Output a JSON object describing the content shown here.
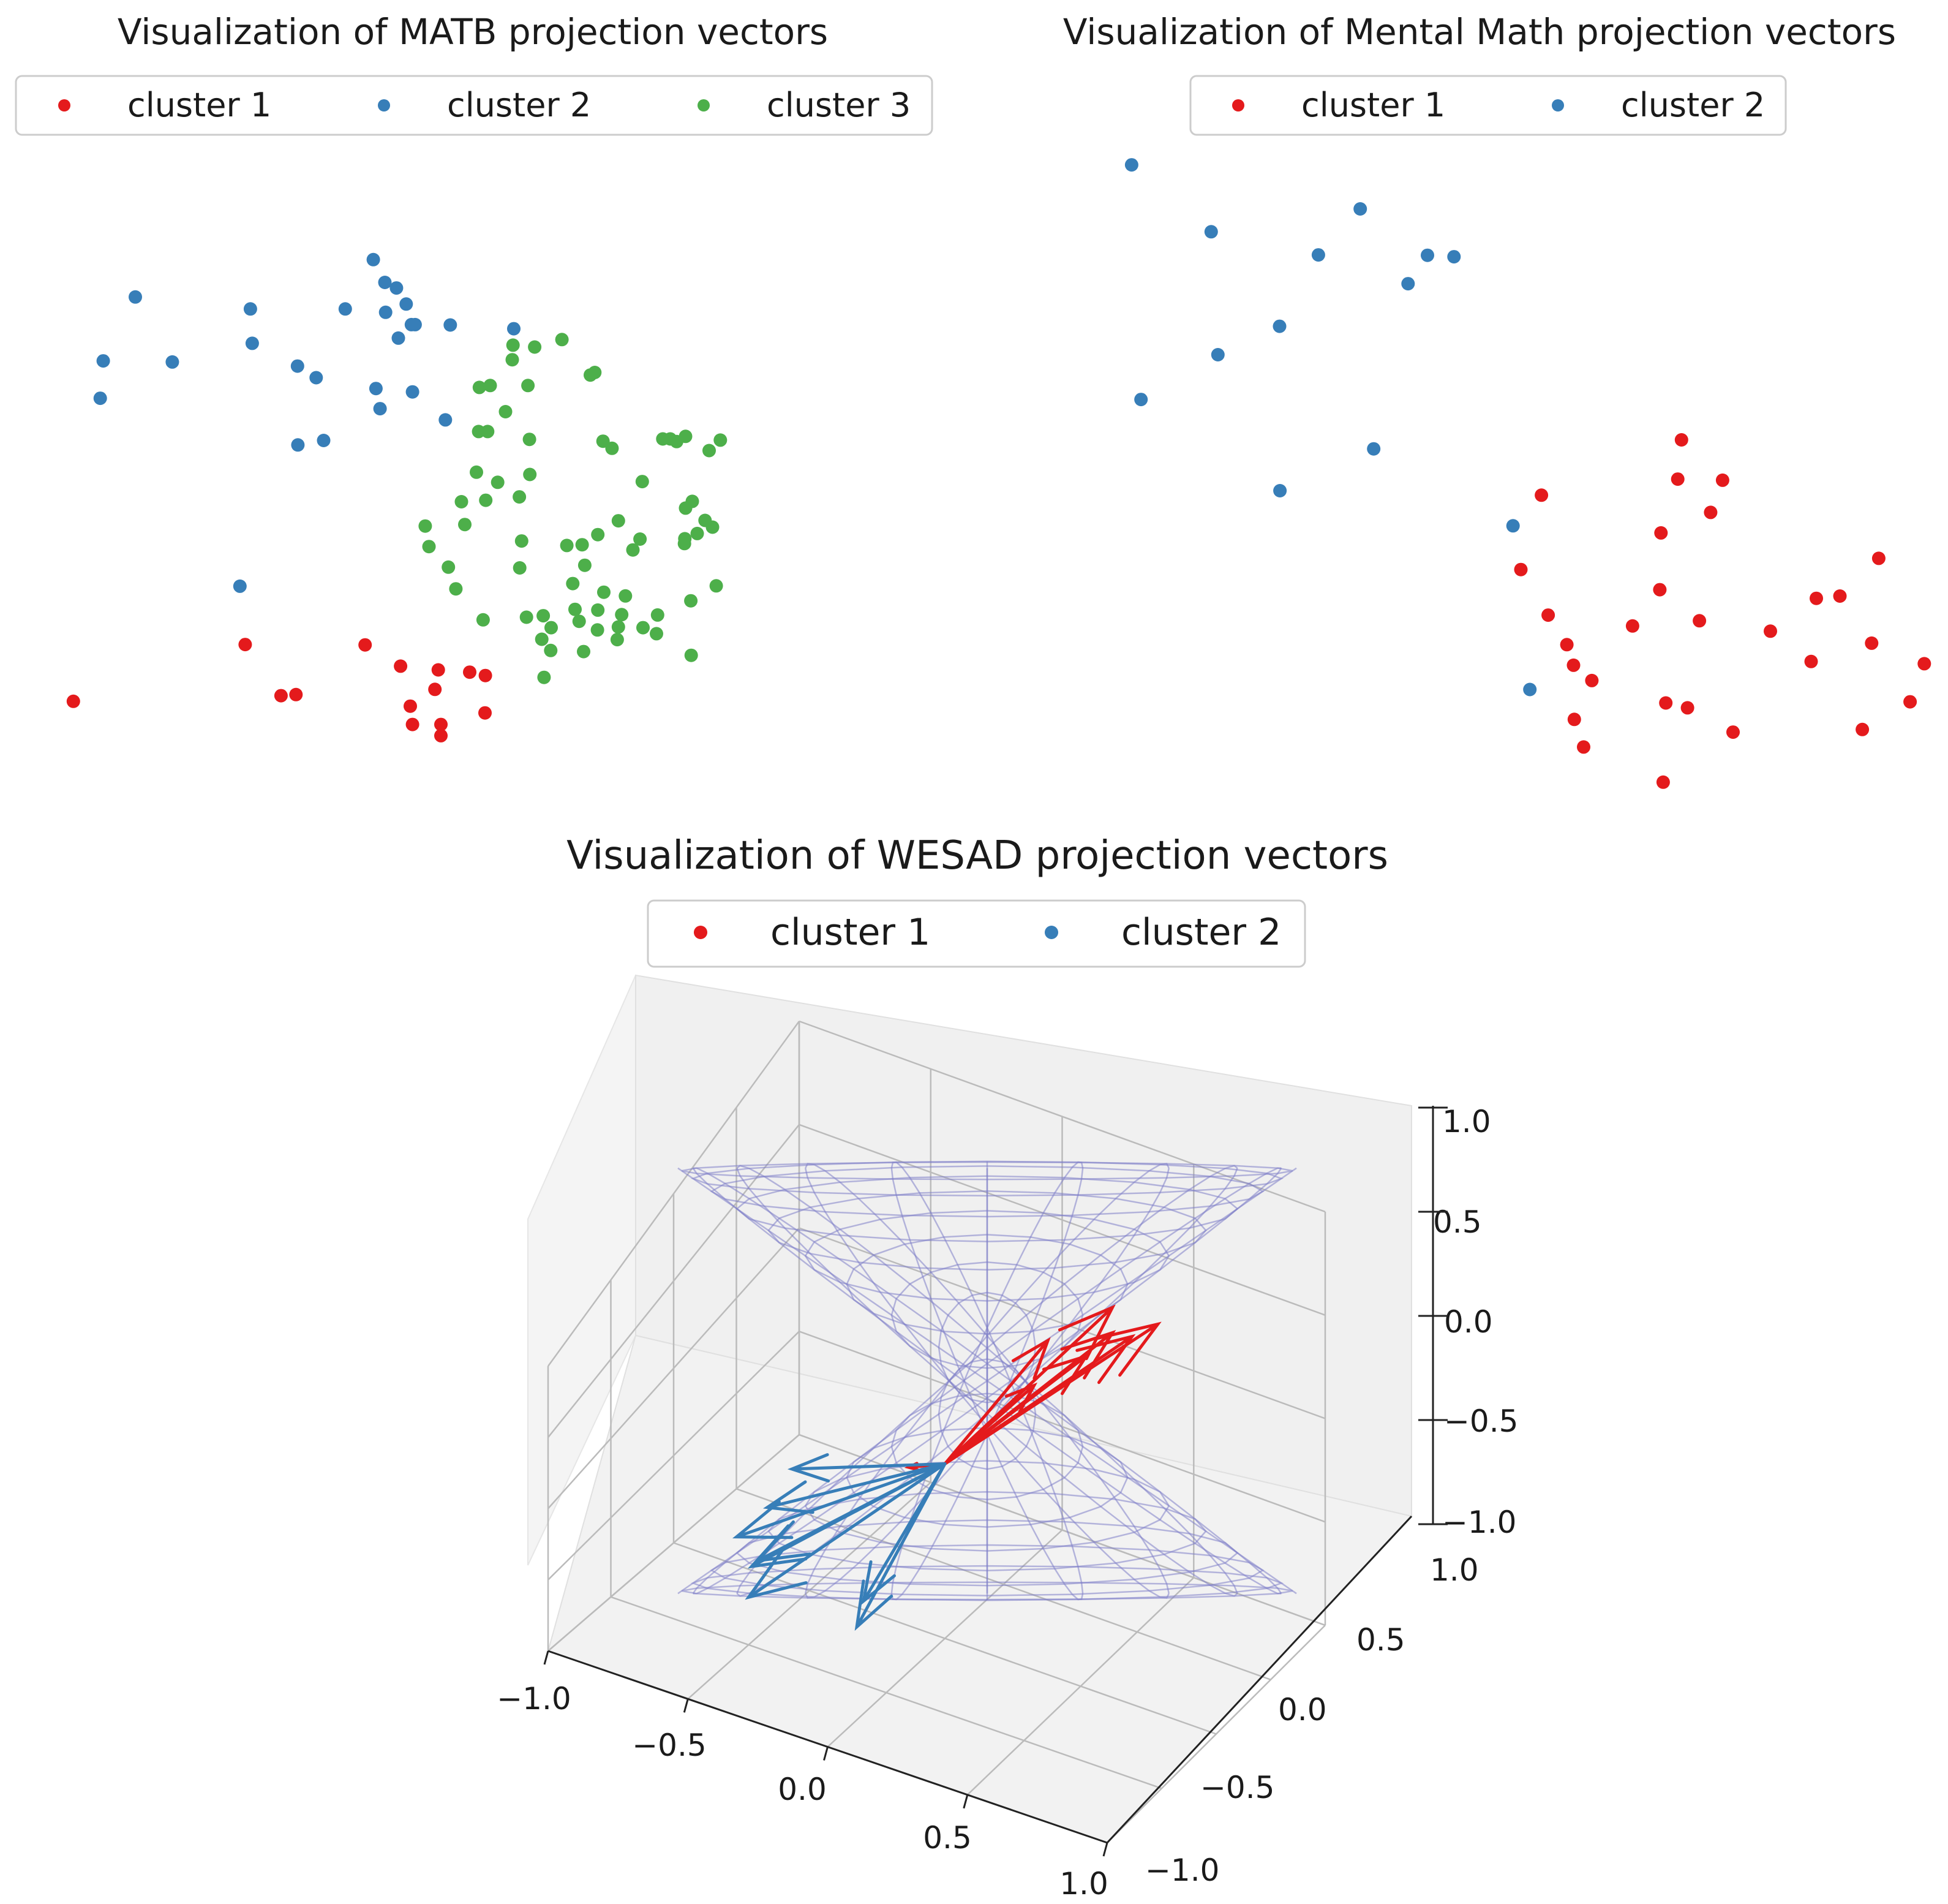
{
  "colors": {
    "cluster1": "#e41a1c",
    "cluster2": "#377eb8",
    "cluster3": "#4daf4a",
    "sphere": "#8080c8",
    "pane": "#f2f2f2",
    "grid": "#bbbbbb"
  },
  "chart_data": [
    {
      "type": "scatter",
      "title": "Visualization of MATB projection vectors",
      "legend_position": "top-center",
      "axes_visible": false,
      "series": [
        {
          "name": "cluster 1",
          "color": "#e41a1c",
          "points": [
            [
              -10.84,
              -10.57
            ],
            [
              -6.24,
              -9.05
            ],
            [
              -5.28,
              -10.42
            ],
            [
              -4.88,
              -10.39
            ],
            [
              -3.03,
              -9.06
            ],
            [
              -2.08,
              -9.63
            ],
            [
              -1.82,
              -10.7
            ],
            [
              -1.76,
              -11.19
            ],
            [
              -1.16,
              -10.25
            ],
            [
              -1.07,
              -9.73
            ],
            [
              -1.0,
              -11.19
            ],
            [
              -1.0,
              -11.49
            ],
            [
              -0.23,
              -9.79
            ],
            [
              0.18,
              -10.88
            ],
            [
              0.19,
              -9.88
            ]
          ]
        },
        {
          "name": "cluster 2",
          "color": "#377eb8",
          "points": [
            [
              -10.04,
              -1.46
            ],
            [
              -10.12,
              -2.46
            ],
            [
              -9.18,
              0.25
            ],
            [
              -8.19,
              -1.49
            ],
            [
              -6.38,
              -7.49
            ],
            [
              -6.1,
              -0.07
            ],
            [
              -6.05,
              -0.99
            ],
            [
              -4.84,
              -1.6
            ],
            [
              -4.83,
              -3.71
            ],
            [
              -4.34,
              -1.91
            ],
            [
              -4.14,
              -3.59
            ],
            [
              -3.56,
              -0.07
            ],
            [
              -2.74,
              -2.2
            ],
            [
              -2.63,
              -2.74
            ],
            [
              -2.81,
              1.25
            ],
            [
              -2.5,
              0.64
            ],
            [
              -2.48,
              -0.16
            ],
            [
              -2.19,
              0.49
            ],
            [
              -2.14,
              -0.85
            ],
            [
              -1.93,
              0.06
            ],
            [
              -1.79,
              -0.49
            ],
            [
              -1.76,
              -2.29
            ],
            [
              -1.69,
              -0.49
            ],
            [
              -0.88,
              -3.04
            ],
            [
              -0.75,
              -0.5
            ],
            [
              0.95,
              -0.6
            ]
          ]
        },
        {
          "name": "cluster 3",
          "color": "#4daf4a",
          "points": [
            [
              -1.42,
              -5.88
            ],
            [
              -1.32,
              -6.43
            ],
            [
              -0.8,
              -6.98
            ],
            [
              -0.6,
              -7.56
            ],
            [
              -0.45,
              -5.23
            ],
            [
              -0.36,
              -5.84
            ],
            [
              -0.05,
              -4.44
            ],
            [
              0.03,
              -2.17
            ],
            [
              0.01,
              -3.35
            ],
            [
              0.13,
              -8.39
            ],
            [
              0.2,
              -5.19
            ],
            [
              0.25,
              -3.35
            ],
            [
              0.32,
              -2.12
            ],
            [
              0.52,
              -4.71
            ],
            [
              0.73,
              -2.82
            ],
            [
              0.91,
              -1.43
            ],
            [
              0.93,
              -1.04
            ],
            [
              1.1,
              -5.1
            ],
            [
              1.11,
              -7.0
            ],
            [
              1.16,
              -6.28
            ],
            [
              1.33,
              -2.12
            ],
            [
              1.37,
              -3.56
            ],
            [
              1.29,
              -8.32
            ],
            [
              1.38,
              -4.5
            ],
            [
              1.51,
              -1.09
            ],
            [
              1.7,
              -8.91
            ],
            [
              1.74,
              -8.28
            ],
            [
              1.76,
              -9.93
            ],
            [
              1.95,
              -8.6
            ],
            [
              1.94,
              -9.21
            ],
            [
              2.24,
              -0.89
            ],
            [
              2.37,
              -6.4
            ],
            [
              2.53,
              -7.42
            ],
            [
              2.59,
              -8.11
            ],
            [
              2.7,
              -8.43
            ],
            [
              2.78,
              -6.38
            ],
            [
              2.82,
              -9.24
            ],
            [
              2.85,
              -6.93
            ],
            [
              3.0,
              -1.84
            ],
            [
              3.12,
              -1.77
            ],
            [
              3.2,
              -8.13
            ],
            [
              3.19,
              -8.66
            ],
            [
              3.2,
              -6.11
            ],
            [
              3.34,
              -3.61
            ],
            [
              3.36,
              -7.65
            ],
            [
              3.58,
              -3.8
            ],
            [
              3.72,
              -8.92
            ],
            [
              3.75,
              -8.58
            ],
            [
              3.75,
              -5.74
            ],
            [
              3.84,
              -8.25
            ],
            [
              3.94,
              -7.75
            ],
            [
              4.14,
              -6.52
            ],
            [
              4.33,
              -6.23
            ],
            [
              4.39,
              -4.69
            ],
            [
              4.41,
              -8.6
            ],
            [
              4.77,
              -8.76
            ],
            [
              4.8,
              -8.26
            ],
            [
              4.94,
              -3.55
            ],
            [
              5.14,
              -3.55
            ],
            [
              5.31,
              -3.62
            ],
            [
              5.52,
              -6.35
            ],
            [
              5.55,
              -5.4
            ],
            [
              5.55,
              -3.48
            ],
            [
              5.53,
              -6.22
            ],
            [
              5.69,
              -7.88
            ],
            [
              5.7,
              -9.34
            ],
            [
              5.73,
              -5.22
            ],
            [
              5.86,
              -6.08
            ],
            [
              6.07,
              -5.73
            ],
            [
              6.18,
              -3.86
            ],
            [
              6.27,
              -5.91
            ],
            [
              6.37,
              -7.48
            ],
            [
              6.48,
              -3.58
            ]
          ]
        }
      ]
    },
    {
      "type": "scatter",
      "title": "Visualization of Mental Math projection vectors",
      "legend_position": "top-center",
      "axes_visible": false,
      "series": [
        {
          "name": "cluster 1",
          "color": "#e41a1c",
          "points": [
            [
              10.32,
              -5.7
            ],
            [
              10.87,
              -3.71
            ],
            [
              11.05,
              -6.92
            ],
            [
              11.55,
              -7.71
            ],
            [
              11.73,
              -8.26
            ],
            [
              11.75,
              -9.71
            ],
            [
              12.0,
              -10.45
            ],
            [
              12.22,
              -8.67
            ],
            [
              13.31,
              -7.21
            ],
            [
              14.04,
              -6.24
            ],
            [
              14.07,
              -4.72
            ],
            [
              14.13,
              -11.39
            ],
            [
              14.2,
              -9.27
            ],
            [
              14.78,
              -9.4
            ],
            [
              14.62,
              -2.23
            ],
            [
              14.52,
              -3.28
            ],
            [
              15.1,
              -7.07
            ],
            [
              15.4,
              -4.17
            ],
            [
              15.72,
              -3.31
            ],
            [
              16.0,
              -10.05
            ],
            [
              17.0,
              -7.35
            ],
            [
              18.09,
              -8.16
            ],
            [
              18.23,
              -6.47
            ],
            [
              18.86,
              -6.41
            ],
            [
              19.46,
              -9.98
            ],
            [
              19.71,
              -7.67
            ],
            [
              19.9,
              -5.4
            ],
            [
              20.74,
              -9.24
            ],
            [
              21.12,
              -8.22
            ]
          ]
        },
        {
          "name": "cluster 2",
          "color": "#377eb8",
          "points": [
            [
              -0.1,
              5.13
            ],
            [
              0.15,
              -1.15
            ],
            [
              2.03,
              3.34
            ],
            [
              2.21,
              0.05
            ],
            [
              3.86,
              0.81
            ],
            [
              3.87,
              -3.59
            ],
            [
              4.9,
              2.72
            ],
            [
              6.02,
              3.95
            ],
            [
              6.38,
              -2.47
            ],
            [
              7.3,
              1.95
            ],
            [
              7.82,
              2.71
            ],
            [
              8.53,
              2.67
            ],
            [
              10.11,
              -4.53
            ],
            [
              10.56,
              -8.91
            ]
          ]
        }
      ]
    },
    {
      "type": "scatter3d",
      "title": "Visualization of WESAD projection vectors",
      "legend_position": "top-center",
      "x_ticks": [
        "−1.0",
        "−0.5",
        "0.0",
        "0.5",
        "1.0"
      ],
      "y_ticks": [
        "−1.0",
        "−0.5",
        "0.0",
        "0.5",
        "1.0"
      ],
      "z_ticks": [
        "−1.0",
        "−0.5",
        "0.0",
        "0.5",
        "1.0"
      ],
      "xlim": [
        -1,
        1
      ],
      "ylim": [
        -1,
        1
      ],
      "zlim": [
        -1,
        1
      ],
      "sphere": {
        "radius": 1,
        "style": "wireframe"
      },
      "series": [
        {
          "name": "cluster 1",
          "color": "#e41a1c",
          "vectors": [
            [
              0.3,
              0.75,
              0.4
            ],
            [
              0.3,
              0.92,
              0.13
            ],
            [
              -0.05,
              0.99,
              -0.1
            ],
            [
              0.2,
              0.98,
              0.06
            ],
            [
              -0.08,
              0.94,
              -0.3
            ],
            [
              0.1,
              0.98,
              -0.1
            ],
            [
              0.45,
              0.8,
              0.35
            ],
            [
              -0.4,
              0.6,
              -0.65
            ]
          ]
        },
        {
          "name": "cluster 2",
          "color": "#377eb8",
          "vectors": [
            [
              0.1,
              -0.99,
              -0.1
            ],
            [
              -0.7,
              -0.15,
              -0.7
            ],
            [
              -0.5,
              -0.5,
              -0.7
            ],
            [
              -0.7,
              0.1,
              -0.7
            ],
            [
              -0.6,
              -0.2,
              -0.75
            ],
            [
              -0.6,
              -0.25,
              -0.75
            ],
            [
              -0.3,
              0.0,
              -0.95
            ],
            [
              -0.7,
              0.3,
              -0.62
            ]
          ]
        }
      ]
    }
  ]
}
